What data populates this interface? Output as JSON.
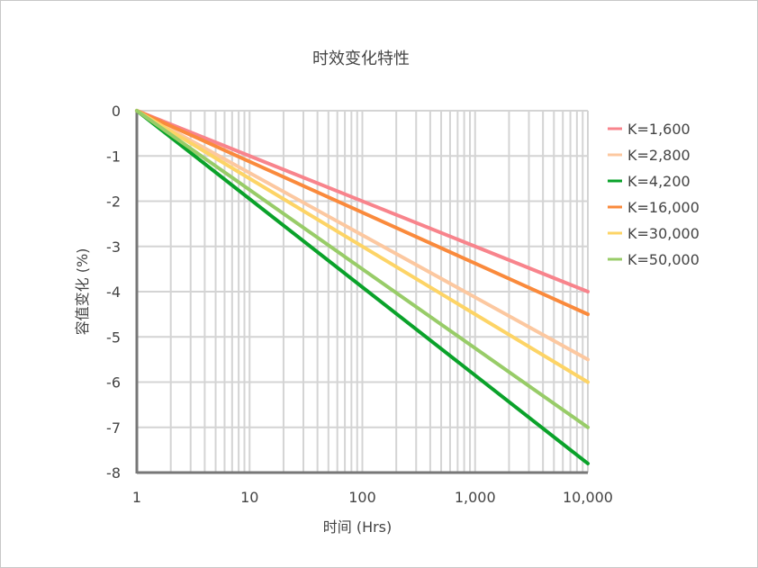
{
  "chart_data": {
    "type": "line",
    "title": "时效变化特性",
    "xlabel": "时间 (Hrs)",
    "ylabel": "容值变化 (%)",
    "xscale": "log",
    "xlim": [
      1,
      10000
    ],
    "ylim": [
      -8,
      0
    ],
    "x_ticks": [
      {
        "v": 1,
        "label": "1"
      },
      {
        "v": 10,
        "label": "10"
      },
      {
        "v": 100,
        "label": "100"
      },
      {
        "v": 1000,
        "label": "1,000"
      },
      {
        "v": 10000,
        "label": "10,000"
      }
    ],
    "y_ticks": [
      {
        "v": 0,
        "label": "0"
      },
      {
        "v": -1,
        "label": "-1"
      },
      {
        "v": -2,
        "label": "-2"
      },
      {
        "v": -3,
        "label": "-3"
      },
      {
        "v": -4,
        "label": "-4"
      },
      {
        "v": -5,
        "label": "-5"
      },
      {
        "v": -6,
        "label": "-6"
      },
      {
        "v": -7,
        "label": "-7"
      },
      {
        "v": -8,
        "label": "-8"
      }
    ],
    "grid": true,
    "legend_position": "right",
    "series": [
      {
        "name": "K=1,600",
        "color": "#f8848c",
        "x": [
          1,
          10000
        ],
        "y": [
          0,
          -4.0
        ]
      },
      {
        "name": "K=2,800",
        "color": "#fcc8a0",
        "x": [
          1,
          10000
        ],
        "y": [
          0,
          -5.5
        ]
      },
      {
        "name": "K=4,200",
        "color": "#0aa22a",
        "x": [
          1,
          10000
        ],
        "y": [
          0,
          -7.8
        ]
      },
      {
        "name": "K=16,000",
        "color": "#fa8a3c",
        "x": [
          1,
          10000
        ],
        "y": [
          0,
          -4.5
        ]
      },
      {
        "name": "K=30,000",
        "color": "#fdd466",
        "x": [
          1,
          10000
        ],
        "y": [
          0,
          -6.0
        ]
      },
      {
        "name": "K=50,000",
        "color": "#98cc68",
        "x": [
          1,
          10000
        ],
        "y": [
          0,
          -7.0
        ]
      }
    ]
  }
}
